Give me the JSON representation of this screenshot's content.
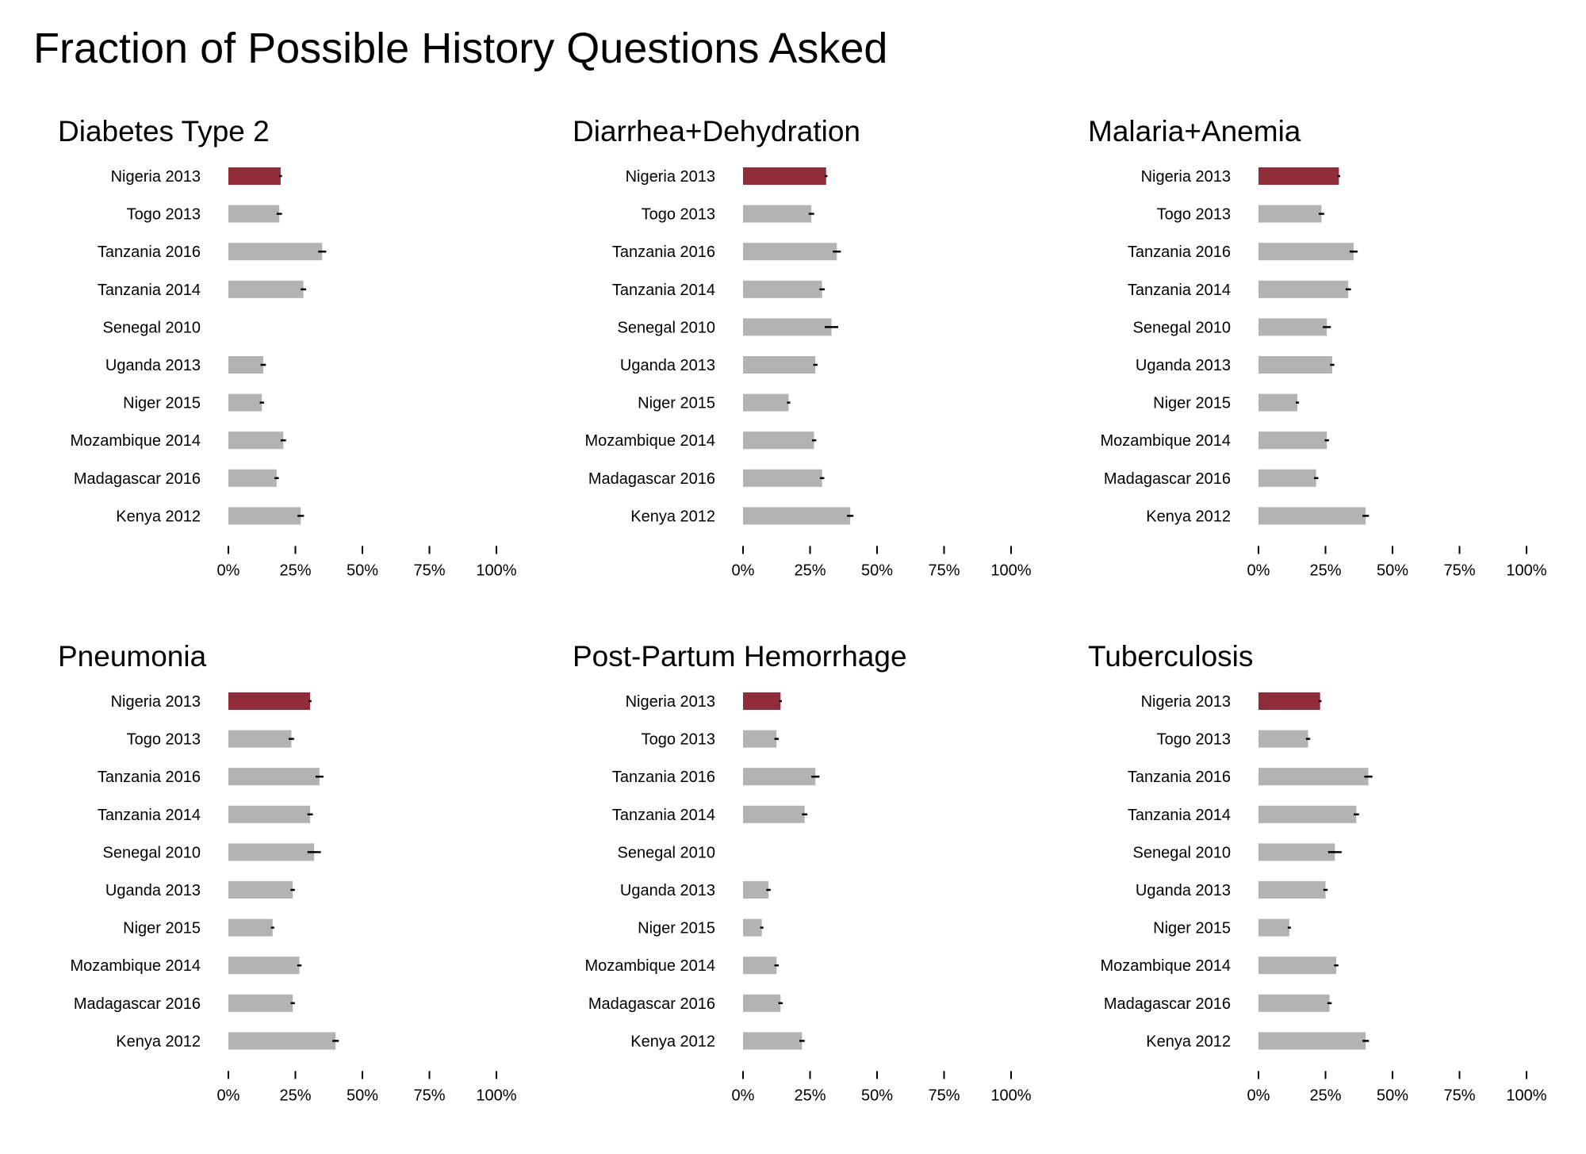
{
  "title": "Fraction of Possible History Questions Asked",
  "colors": {
    "highlight": "#8f2d3a",
    "default": "#b3b3b3",
    "errorbar": "#000000"
  },
  "categories": [
    "Nigeria 2013",
    "Togo 2013",
    "Tanzania 2016",
    "Tanzania 2014",
    "Senegal 2010",
    "Uganda 2013",
    "Niger 2015",
    "Mozambique 2014",
    "Madagascar 2016",
    "Kenya 2012"
  ],
  "highlight_category": "Nigeria 2013",
  "x_ticks": [
    "0%",
    "25%",
    "50%",
    "75%",
    "100%"
  ],
  "chart_data": [
    {
      "type": "bar",
      "orientation": "horizontal",
      "title": "Diabetes Type 2",
      "xlim": [
        0,
        100
      ],
      "categories": [
        "Nigeria 2013",
        "Togo 2013",
        "Tanzania 2016",
        "Tanzania 2014",
        "Senegal 2010",
        "Uganda 2013",
        "Niger 2015",
        "Mozambique 2014",
        "Madagascar 2016",
        "Kenya 2012"
      ],
      "values": [
        19.5,
        19,
        35,
        28,
        null,
        13,
        12.5,
        20.5,
        18,
        27
      ],
      "error": [
        0.5,
        1,
        1.5,
        1,
        null,
        1,
        0.8,
        1,
        0.8,
        1.2
      ]
    },
    {
      "type": "bar",
      "orientation": "horizontal",
      "title": "Diarrhea+Dehydration",
      "xlim": [
        0,
        100
      ],
      "categories": [
        "Nigeria 2013",
        "Togo 2013",
        "Tanzania 2016",
        "Tanzania 2014",
        "Senegal 2010",
        "Uganda 2013",
        "Niger 2015",
        "Mozambique 2014",
        "Madagascar 2016",
        "Kenya 2012"
      ],
      "values": [
        31,
        25.5,
        35,
        29.5,
        33,
        27,
        17,
        26.5,
        29.5,
        40
      ],
      "error": [
        0.5,
        1,
        1.5,
        1,
        2.5,
        0.8,
        0.6,
        0.8,
        0.8,
        1.2
      ]
    },
    {
      "type": "bar",
      "orientation": "horizontal",
      "title": "Malaria+Anemia",
      "xlim": [
        0,
        100
      ],
      "categories": [
        "Nigeria 2013",
        "Togo 2013",
        "Tanzania 2016",
        "Tanzania 2014",
        "Senegal 2010",
        "Uganda 2013",
        "Niger 2015",
        "Mozambique 2014",
        "Madagascar 2016",
        "Kenya 2012"
      ],
      "values": [
        30,
        23.5,
        35.5,
        33.5,
        25.5,
        27.5,
        14.5,
        25.5,
        21.5,
        40
      ],
      "error": [
        0.5,
        1,
        1.5,
        1,
        1.5,
        0.8,
        0.6,
        0.8,
        0.8,
        1.2
      ]
    },
    {
      "type": "bar",
      "orientation": "horizontal",
      "title": "Pneumonia",
      "xlim": [
        0,
        100
      ],
      "categories": [
        "Nigeria 2013",
        "Togo 2013",
        "Tanzania 2016",
        "Tanzania 2014",
        "Senegal 2010",
        "Uganda 2013",
        "Niger 2015",
        "Mozambique 2014",
        "Madagascar 2016",
        "Kenya 2012"
      ],
      "values": [
        30.5,
        23.5,
        34,
        30.5,
        32,
        24,
        16.5,
        26.5,
        24,
        40
      ],
      "error": [
        0.5,
        1,
        1.5,
        1,
        2.5,
        0.8,
        0.6,
        0.8,
        0.8,
        1.2
      ]
    },
    {
      "type": "bar",
      "orientation": "horizontal",
      "title": "Post-Partum Hemorrhage",
      "xlim": [
        0,
        100
      ],
      "categories": [
        "Nigeria 2013",
        "Togo 2013",
        "Tanzania 2016",
        "Tanzania 2014",
        "Senegal 2010",
        "Uganda 2013",
        "Niger 2015",
        "Mozambique 2014",
        "Madagascar 2016",
        "Kenya 2012"
      ],
      "values": [
        14,
        12.5,
        27,
        23,
        null,
        9.5,
        7,
        12.5,
        14,
        22
      ],
      "error": [
        0.5,
        0.8,
        1.5,
        1,
        null,
        0.8,
        0.6,
        0.8,
        0.8,
        1
      ]
    },
    {
      "type": "bar",
      "orientation": "horizontal",
      "title": "Tuberculosis",
      "xlim": [
        0,
        100
      ],
      "categories": [
        "Nigeria 2013",
        "Togo 2013",
        "Tanzania 2016",
        "Tanzania 2014",
        "Senegal 2010",
        "Uganda 2013",
        "Niger 2015",
        "Mozambique 2014",
        "Madagascar 2016",
        "Kenya 2012"
      ],
      "values": [
        23,
        18.5,
        41,
        36.5,
        28.5,
        25,
        11.5,
        29,
        26.5,
        40
      ],
      "error": [
        0.5,
        0.8,
        1.5,
        1,
        2.5,
        0.8,
        0.6,
        0.8,
        0.8,
        1.2
      ]
    }
  ]
}
